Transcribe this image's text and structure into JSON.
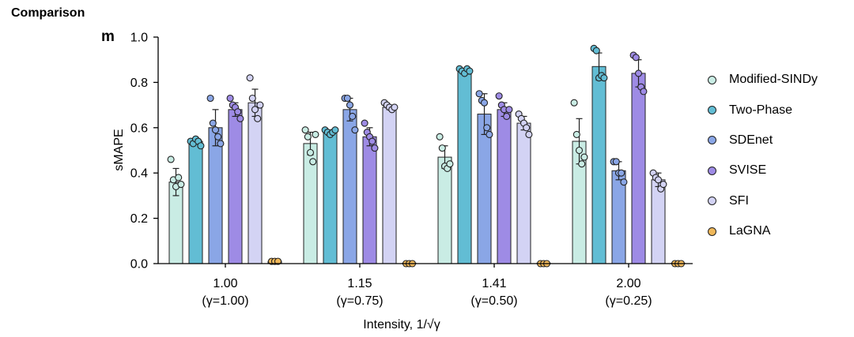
{
  "header": {
    "title": "Comparison",
    "panel_label": "m"
  },
  "chart_data": {
    "type": "bar",
    "title": "",
    "xlabel": "Intensity, 1/√γ",
    "ylabel": "sMAPE",
    "ylim": [
      0,
      1.0
    ],
    "yticks": [
      "0.0",
      "0.2",
      "0.4",
      "0.6",
      "0.8",
      "1.0"
    ],
    "grid": false,
    "legend_position": "right",
    "categories": [
      {
        "value": "1.00",
        "gamma": "(γ=1.00)"
      },
      {
        "value": "1.15",
        "gamma": "(γ=0.75)"
      },
      {
        "value": "1.41",
        "gamma": "(γ=0.50)"
      },
      {
        "value": "2.00",
        "gamma": "(γ=0.25)"
      }
    ],
    "series": [
      {
        "name": "Modified-SINDy",
        "color": "#c9ece4",
        "values": [
          0.36,
          0.53,
          0.47,
          0.54
        ],
        "err": [
          0.06,
          0.05,
          0.05,
          0.1
        ],
        "points": [
          [
            0.46,
            0.37,
            0.34,
            0.38,
            0.35
          ],
          [
            0.59,
            0.56,
            0.49,
            0.45,
            0.57
          ],
          [
            0.56,
            0.51,
            0.43,
            0.42,
            0.44
          ],
          [
            0.71,
            0.57,
            0.5,
            0.44,
            0.47
          ]
        ]
      },
      {
        "name": "Two-Phase",
        "color": "#62bdd4",
        "values": [
          0.54,
          0.58,
          0.85,
          0.87
        ],
        "err": [
          0.01,
          0.01,
          0.01,
          0.06
        ],
        "points": [
          [
            0.54,
            0.53,
            0.55,
            0.54,
            0.52
          ],
          [
            0.59,
            0.58,
            0.57,
            0.58,
            0.59
          ],
          [
            0.86,
            0.85,
            0.84,
            0.86,
            0.85
          ],
          [
            0.95,
            0.94,
            0.82,
            0.83,
            0.82
          ]
        ]
      },
      {
        "name": "SDEnet",
        "color": "#8aa6e6",
        "values": [
          0.6,
          0.68,
          0.66,
          0.41
        ],
        "err": [
          0.08,
          0.05,
          0.09,
          0.04
        ],
        "points": [
          [
            0.73,
            0.62,
            0.59,
            0.56,
            0.53
          ],
          [
            0.73,
            0.73,
            0.7,
            0.65,
            0.59
          ],
          [
            0.75,
            0.72,
            0.71,
            0.6,
            0.57
          ],
          [
            0.45,
            0.45,
            0.4,
            0.4,
            0.36
          ]
        ]
      },
      {
        "name": "SVISE",
        "color": "#9e8be5",
        "values": [
          0.68,
          0.56,
          0.68,
          0.84
        ],
        "err": [
          0.03,
          0.04,
          0.03,
          0.06
        ],
        "points": [
          [
            0.73,
            0.7,
            0.69,
            0.67,
            0.64
          ],
          [
            0.62,
            0.58,
            0.56,
            0.54,
            0.51
          ],
          [
            0.74,
            0.7,
            0.68,
            0.65,
            0.68
          ],
          [
            0.92,
            0.91,
            0.84,
            0.78,
            0.76
          ]
        ]
      },
      {
        "name": "SFI",
        "color": "#d3d3f4",
        "values": [
          0.71,
          0.69,
          0.62,
          0.37
        ],
        "err": [
          0.06,
          0.01,
          0.03,
          0.03
        ],
        "points": [
          [
            0.82,
            0.73,
            0.68,
            0.64,
            0.7
          ],
          [
            0.71,
            0.7,
            0.69,
            0.68,
            0.69
          ],
          [
            0.66,
            0.64,
            0.62,
            0.6,
            0.57
          ],
          [
            0.4,
            0.38,
            0.37,
            0.33,
            0.35
          ]
        ]
      },
      {
        "name": "LaGNA",
        "color": "#f0b85a",
        "values": [
          0.01,
          0.0,
          0.0,
          0.0
        ],
        "err": [
          0.005,
          0.005,
          0.005,
          0.005
        ],
        "points": [
          [
            0.01,
            0.01,
            0.01
          ],
          [
            0.0,
            0.0,
            0.0
          ],
          [
            0.0,
            0.0,
            0.0
          ],
          [
            0.0,
            0.0,
            0.0
          ]
        ]
      }
    ]
  }
}
